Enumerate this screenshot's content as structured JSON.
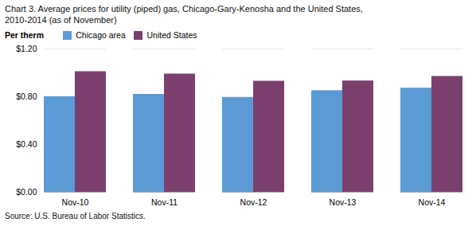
{
  "chart_data": {
    "type": "bar",
    "title": "Chart 3. Average prices for utility (piped)  gas, Chicago-Gary-Kenosha  and the United States,",
    "subtitle": "2010-2014  (as of November)",
    "ylabel": "Per therm",
    "caption": "Source: U.S. Bureau of Labor Statistics.",
    "categories": [
      "Nov-10",
      "Nov-11",
      "Nov-12",
      "Nov-13",
      "Nov-14"
    ],
    "series": [
      {
        "name": "Chicago area",
        "color": "#5B9BD5",
        "values": [
          0.8,
          0.82,
          0.793,
          0.851,
          0.872
        ]
      },
      {
        "name": "United States",
        "color": "#7B3F6E",
        "values": [
          1.01,
          0.99,
          0.93,
          0.932,
          0.97
        ]
      }
    ],
    "ylim": [
      0.0,
      1.2
    ],
    "yticks": [
      {
        "value": 0.0,
        "label": "$0.00"
      },
      {
        "value": 0.4,
        "label": "$0.40"
      },
      {
        "value": 0.8,
        "label": "$0.80"
      },
      {
        "value": 1.2,
        "label": "$1.20"
      }
    ],
    "grid": true,
    "legend": "top"
  }
}
